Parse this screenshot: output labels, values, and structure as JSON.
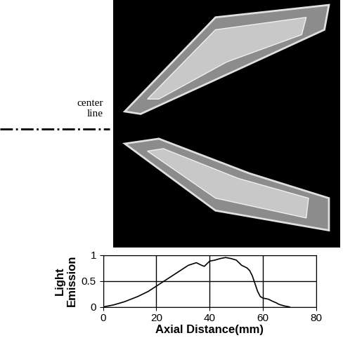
{
  "chart_data": {
    "type": "line",
    "annotations": [
      "center line"
    ],
    "x_label": "Axial Distance(mm)",
    "y_label": "Light\nEmission",
    "x": [
      0,
      4,
      8,
      13,
      17,
      20,
      23,
      26,
      29,
      32,
      35,
      37,
      38,
      40,
      42,
      44,
      46,
      48,
      50,
      52,
      54,
      55,
      56,
      57,
      58,
      59,
      60,
      62,
      64,
      65,
      66,
      68,
      70
    ],
    "values": [
      0,
      0.04,
      0.1,
      0.2,
      0.3,
      0.4,
      0.5,
      0.6,
      0.7,
      0.8,
      0.85,
      0.8,
      0.78,
      0.88,
      0.9,
      0.93,
      0.95,
      0.93,
      0.9,
      0.8,
      0.75,
      0.7,
      0.6,
      0.45,
      0.3,
      0.2,
      0.17,
      0.15,
      0.1,
      0.08,
      0.05,
      0.02,
      0
    ],
    "color": "#000000",
    "xlim": [
      0,
      80
    ],
    "xticks": [
      0,
      20,
      40,
      60,
      80
    ],
    "ylim": [
      0,
      1
    ],
    "yticks": [
      0,
      0.5,
      1
    ],
    "grid": true
  }
}
